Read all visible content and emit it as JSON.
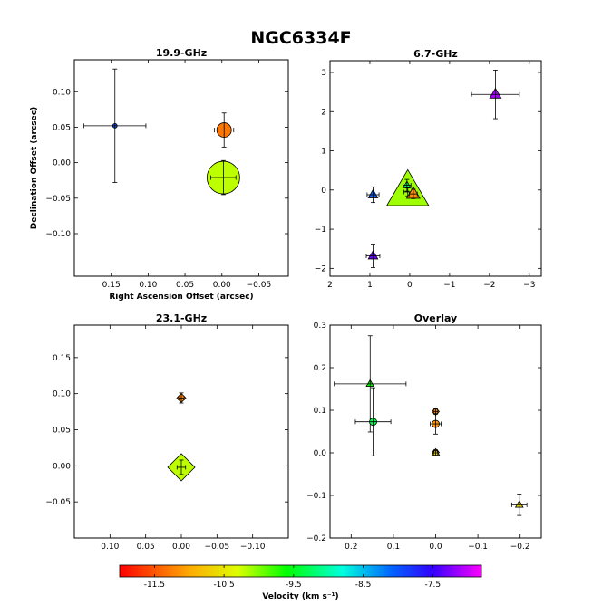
{
  "chart_data": {
    "type": "scatter",
    "title": "NGC6334F",
    "colorbar": {
      "label": "Velocity (km s⁻¹)",
      "range": [
        -12.0,
        -6.8
      ],
      "ticks": [
        "-11.5",
        "-10.5",
        "-9.5",
        "-8.5",
        "-7.5"
      ],
      "tick_values": [
        -11.5,
        -10.5,
        -9.5,
        -8.5,
        -7.5
      ],
      "stops": [
        {
          "v": -12.0,
          "color": "#ff0000"
        },
        {
          "v": -11.0,
          "color": "#ffaa00"
        },
        {
          "v": -10.3,
          "color": "#ddff00"
        },
        {
          "v": -9.6,
          "color": "#00ff00"
        },
        {
          "v": -8.8,
          "color": "#00ffdd"
        },
        {
          "v": -8.1,
          "color": "#0066ff"
        },
        {
          "v": -7.5,
          "color": "#3300ff"
        },
        {
          "v": -6.8,
          "color": "#ff00ff"
        }
      ]
    },
    "panels": [
      {
        "title": "19.9-GHz",
        "xlabel": "Right Ascension Offset (arcsec)",
        "ylabel": "Declination Offset (arcsec)",
        "xlim": [
          0.2,
          -0.09
        ],
        "ylim": [
          -0.16,
          0.145
        ],
        "xticks": [
          0.15,
          0.1,
          0.05,
          0.0,
          -0.05
        ],
        "xtick_labels": [
          "0.15",
          "0.10",
          "0.05",
          "0.00",
          "−0.05"
        ],
        "yticks": [
          0.1,
          0.05,
          0.0,
          -0.05,
          -0.1
        ],
        "ytick_labels": [
          "0.10",
          "0.05",
          "0.00",
          "−0.05",
          "−0.10"
        ],
        "points": [
          {
            "x": 0.145,
            "y": 0.052,
            "xerr": 0.042,
            "yerr": 0.08,
            "v": -8.0,
            "size": 2.5,
            "marker": "circle"
          },
          {
            "x": -0.003,
            "y": 0.046,
            "xerr": 0.013,
            "yerr": 0.024,
            "v": -11.3,
            "size": 8,
            "marker": "circle"
          },
          {
            "x": -0.002,
            "y": -0.021,
            "xerr": 0.017,
            "yerr": 0.024,
            "v": -10.2,
            "size": 18,
            "marker": "circle"
          }
        ]
      },
      {
        "title": "6.7-GHz",
        "xlabel": "",
        "ylabel": "",
        "xlim": [
          2.0,
          -3.3
        ],
        "ylim": [
          -2.2,
          3.3
        ],
        "xticks": [
          2,
          1,
          0,
          -1,
          -2,
          -3
        ],
        "xtick_labels": [
          "2",
          "1",
          "0",
          "−1",
          "−2",
          "−3"
        ],
        "yticks": [
          3,
          2,
          1,
          0,
          -1,
          -2
        ],
        "ytick_labels": [
          "3",
          "2",
          "1",
          "0",
          "−1",
          "−2"
        ],
        "points": [
          {
            "x": -2.15,
            "y": 2.44,
            "xerr": 0.6,
            "yerr": 0.62,
            "v": -7.1,
            "size": 6,
            "marker": "triangle"
          },
          {
            "x": 0.92,
            "y": -0.12,
            "xerr": 0.15,
            "yerr": 0.2,
            "v": -8.1,
            "size": 5,
            "marker": "triangle"
          },
          {
            "x": 0.92,
            "y": -1.68,
            "xerr": 0.17,
            "yerr": 0.3,
            "v": -7.3,
            "size": 5,
            "marker": "triangle"
          },
          {
            "x": 0.05,
            "y": -0.05,
            "xerr": 0.1,
            "yerr": 0.1,
            "v": -10.1,
            "size": 22,
            "marker": "triangle"
          },
          {
            "x": 0.07,
            "y": 0.12,
            "xerr": 0.1,
            "yerr": 0.15,
            "v": -9.2,
            "size": 4,
            "marker": "triangle"
          },
          {
            "x": -0.09,
            "y": -0.1,
            "xerr": 0.1,
            "yerr": 0.12,
            "v": -11.2,
            "size": 7,
            "marker": "triangle"
          }
        ]
      },
      {
        "title": "23.1-GHz",
        "xlabel": "",
        "ylabel": "",
        "xlim": [
          0.15,
          -0.15
        ],
        "ylim": [
          -0.1,
          0.195
        ],
        "xticks": [
          0.1,
          0.05,
          0.0,
          -0.05,
          -0.1
        ],
        "xtick_labels": [
          "0.10",
          "0.05",
          "0.00",
          "−0.05",
          "−0.10"
        ],
        "yticks": [
          0.15,
          0.1,
          0.05,
          0.0,
          -0.05
        ],
        "ytick_labels": [
          "0.15",
          "0.10",
          "0.05",
          "0.00",
          "−0.05"
        ],
        "points": [
          {
            "x": 0.0,
            "y": 0.094,
            "xerr": 0.004,
            "yerr": 0.007,
            "v": -11.2,
            "size": 5,
            "marker": "diamond"
          },
          {
            "x": 0.0,
            "y": -0.002,
            "xerr": 0.006,
            "yerr": 0.01,
            "v": -10.2,
            "size": 15,
            "marker": "diamond"
          }
        ]
      },
      {
        "title": "Overlay",
        "xlabel": "",
        "ylabel": "",
        "xlim": [
          0.25,
          -0.25
        ],
        "ylim": [
          -0.2,
          0.3
        ],
        "xticks": [
          0.2,
          0.1,
          0.0,
          -0.1,
          -0.2
        ],
        "xtick_labels": [
          "0.2",
          "0.1",
          "0.0",
          "−0.1",
          "−0.2"
        ],
        "yticks": [
          0.3,
          0.2,
          0.1,
          0.0,
          -0.1,
          -0.2
        ],
        "ytick_labels": [
          "0.3",
          "0.2",
          "0.1",
          "0.0",
          "−0.1",
          "−0.2"
        ],
        "points": [
          {
            "x": 0.155,
            "y": 0.162,
            "xerr": 0.085,
            "yerr": 0.113,
            "v": -9.6,
            "size": 4,
            "marker": "triangle"
          },
          {
            "x": 0.148,
            "y": 0.073,
            "xerr": 0.042,
            "yerr": 0.08,
            "v": -9.3,
            "size": 4,
            "marker": "circle"
          },
          {
            "x": 0.0,
            "y": 0.097,
            "xerr": 0.005,
            "yerr": 0.006,
            "v": -11.2,
            "size": 4,
            "marker": "diamond"
          },
          {
            "x": 0.0,
            "y": 0.068,
            "xerr": 0.013,
            "yerr": 0.024,
            "v": -11.1,
            "size": 4,
            "marker": "circle"
          },
          {
            "x": 0.0,
            "y": 0.001,
            "xerr": 0.005,
            "yerr": 0.006,
            "v": -10.3,
            "size": 4,
            "marker": "diamond"
          },
          {
            "x": 0.0,
            "y": 0.0,
            "xerr": 0.005,
            "yerr": 0.006,
            "v": -10.7,
            "size": 4,
            "marker": "triangle"
          },
          {
            "x": -0.198,
            "y": -0.122,
            "xerr": 0.018,
            "yerr": 0.025,
            "v": -10.6,
            "size": 4,
            "marker": "triangle"
          }
        ]
      }
    ]
  }
}
